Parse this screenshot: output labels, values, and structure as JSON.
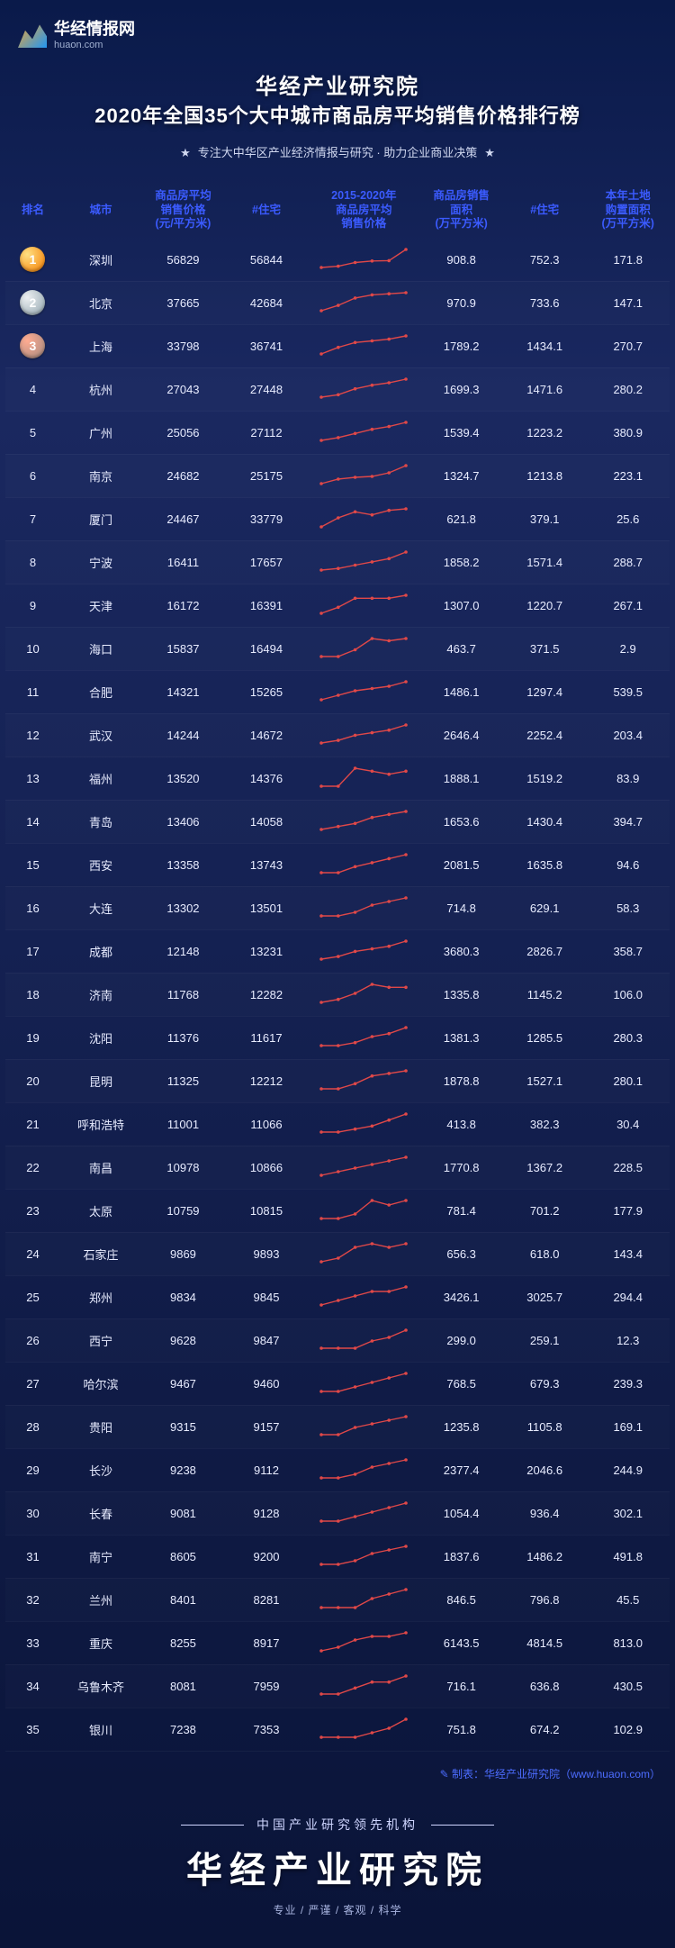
{
  "logo": {
    "name": "华经情报网",
    "domain": "huaon.com"
  },
  "title": {
    "line1": "华经产业研究院",
    "line2": "2020年全国35个大中城市商品房平均销售价格排行榜"
  },
  "slogan": "专注大中华区产业经济情报与研究 · 助力企业商业决策",
  "columns": {
    "rank": "排名",
    "city": "城市",
    "price": "商品房平均\n销售价格\n(元/平方米)",
    "zhuzhai": "#住宅",
    "spark": "2015-2020年\n商品房平均\n销售价格",
    "area": "商品房销售\n面积\n(万平方米)",
    "zhuzhai2": "#住宅",
    "land": "本年土地\n购置面积\n(万平方米)"
  },
  "sparkline_style": {
    "stroke": "#e04848",
    "stroke_width": 1.4,
    "marker_fill": "#e04848",
    "marker_r": 1.8,
    "width": 100,
    "height": 26
  },
  "medal_colors": {
    "1": "#f57c00",
    "2": "#90a4ae",
    "3": "#a1887f"
  },
  "text_colors": {
    "header": "#3b5bff",
    "body": "#e8ecff"
  },
  "rows": [
    {
      "rank": 1,
      "city": "深圳",
      "price": 56829,
      "zhu": 56844,
      "spark": [
        34,
        38,
        50,
        55,
        56,
        92
      ],
      "area": "908.8",
      "zhu2": "752.3",
      "land": "171.8"
    },
    {
      "rank": 2,
      "city": "北京",
      "price": 37665,
      "zhu": 42684,
      "spark": [
        23,
        28,
        35,
        38,
        39,
        40
      ],
      "area": "970.9",
      "zhu2": "733.6",
      "land": "147.1"
    },
    {
      "rank": 3,
      "city": "上海",
      "price": 33798,
      "zhu": 36741,
      "spark": [
        21,
        25,
        28,
        29,
        30,
        32
      ],
      "area": "1789.2",
      "zhu2": "1434.1",
      "land": "270.7"
    },
    {
      "rank": 4,
      "city": "杭州",
      "price": 27043,
      "zhu": 27448,
      "spark": [
        15,
        17,
        22,
        25,
        27,
        30
      ],
      "area": "1699.3",
      "zhu2": "1471.6",
      "land": "280.2"
    },
    {
      "rank": 5,
      "city": "广州",
      "price": 25056,
      "zhu": 27112,
      "spark": [
        15,
        17,
        20,
        23,
        25,
        28
      ],
      "area": "1539.4",
      "zhu2": "1223.2",
      "land": "380.9"
    },
    {
      "rank": 6,
      "city": "南京",
      "price": 24682,
      "zhu": 25175,
      "spark": [
        12,
        17,
        19,
        20,
        24,
        32
      ],
      "area": "1324.7",
      "zhu2": "1213.8",
      "land": "223.1"
    },
    {
      "rank": 7,
      "city": "厦门",
      "price": 24467,
      "zhu": 33779,
      "spark": [
        18,
        24,
        28,
        26,
        29,
        30
      ],
      "area": "621.8",
      "zhu2": "379.1",
      "land": "25.6"
    },
    {
      "rank": 8,
      "city": "宁波",
      "price": 16411,
      "zhu": 17657,
      "spark": [
        11,
        12,
        14,
        16,
        18,
        22
      ],
      "area": "1858.2",
      "zhu2": "1571.4",
      "land": "288.7"
    },
    {
      "rank": 9,
      "city": "天津",
      "price": 16172,
      "zhu": 16391,
      "spark": [
        11,
        13,
        16,
        16,
        16,
        17
      ],
      "area": "1307.0",
      "zhu2": "1220.7",
      "land": "267.1"
    },
    {
      "rank": 10,
      "city": "海口",
      "price": 15837,
      "zhu": 16494,
      "spark": [
        9,
        9,
        12,
        17,
        16,
        17
      ],
      "area": "463.7",
      "zhu2": "371.5",
      "land": "2.9"
    },
    {
      "rank": 11,
      "city": "合肥",
      "price": 14321,
      "zhu": 15265,
      "spark": [
        8,
        10,
        12,
        13,
        14,
        16
      ],
      "area": "1486.1",
      "zhu2": "1297.4",
      "land": "539.5"
    },
    {
      "rank": 12,
      "city": "武汉",
      "price": 14244,
      "zhu": 14672,
      "spark": [
        9,
        10,
        12,
        13,
        14,
        16
      ],
      "area": "2646.4",
      "zhu2": "2252.4",
      "land": "203.4"
    },
    {
      "rank": 13,
      "city": "福州",
      "price": 13520,
      "zhu": 14376,
      "spark": [
        11,
        11,
        17,
        16,
        15,
        16
      ],
      "area": "1888.1",
      "zhu2": "1519.2",
      "land": "83.9"
    },
    {
      "rank": 14,
      "city": "青岛",
      "price": 13406,
      "zhu": 14058,
      "spark": [
        9,
        10,
        11,
        13,
        14,
        15
      ],
      "area": "1653.6",
      "zhu2": "1430.4",
      "land": "394.7"
    },
    {
      "rank": 15,
      "city": "西安",
      "price": 13358,
      "zhu": 13743,
      "spark": [
        7,
        7,
        10,
        12,
        14,
        16
      ],
      "area": "2081.5",
      "zhu2": "1635.8",
      "land": "94.6"
    },
    {
      "rank": 16,
      "city": "大连",
      "price": 13302,
      "zhu": 13501,
      "spark": [
        10,
        10,
        11,
        13,
        14,
        15
      ],
      "area": "714.8",
      "zhu2": "629.1",
      "land": "58.3"
    },
    {
      "rank": 17,
      "city": "成都",
      "price": 12148,
      "zhu": 13231,
      "spark": [
        7,
        8,
        10,
        11,
        12,
        14
      ],
      "area": "3680.3",
      "zhu2": "2826.7",
      "land": "358.7"
    },
    {
      "rank": 18,
      "city": "济南",
      "price": 11768,
      "zhu": 12282,
      "spark": [
        8,
        9,
        11,
        14,
        13,
        13
      ],
      "area": "1335.8",
      "zhu2": "1145.2",
      "land": "106.0"
    },
    {
      "rank": 19,
      "city": "沈阳",
      "price": 11376,
      "zhu": 11617,
      "spark": [
        7,
        7,
        8,
        10,
        11,
        13
      ],
      "area": "1381.3",
      "zhu2": "1285.5",
      "land": "280.3"
    },
    {
      "rank": 20,
      "city": "昆明",
      "price": 11325,
      "zhu": 12212,
      "spark": [
        7,
        7,
        9,
        12,
        13,
        14
      ],
      "area": "1878.8",
      "zhu2": "1527.1",
      "land": "280.1"
    },
    {
      "rank": 21,
      "city": "呼和浩特",
      "price": 11001,
      "zhu": 11066,
      "spark": [
        6,
        6,
        7,
        8,
        10,
        12
      ],
      "area": "413.8",
      "zhu2": "382.3",
      "land": "30.4"
    },
    {
      "rank": 22,
      "city": "南昌",
      "price": 10978,
      "zhu": 10866,
      "spark": [
        7,
        8,
        9,
        10,
        11,
        12
      ],
      "area": "1770.8",
      "zhu2": "1367.2",
      "land": "228.5"
    },
    {
      "rank": 23,
      "city": "太原",
      "price": 10759,
      "zhu": 10815,
      "spark": [
        8,
        8,
        9,
        12,
        11,
        12
      ],
      "area": "781.4",
      "zhu2": "701.2",
      "land": "177.9"
    },
    {
      "rank": 24,
      "city": "石家庄",
      "price": 9869,
      "zhu": 9893,
      "spark": [
        7,
        8,
        11,
        12,
        11,
        12
      ],
      "area": "656.3",
      "zhu2": "618.0",
      "land": "143.4"
    },
    {
      "rank": 25,
      "city": "郑州",
      "price": 9834,
      "zhu": 9845,
      "spark": [
        7,
        8,
        9,
        10,
        10,
        11
      ],
      "area": "3426.1",
      "zhu2": "3025.7",
      "land": "294.4"
    },
    {
      "rank": 26,
      "city": "西宁",
      "price": 9628,
      "zhu": 9847,
      "spark": [
        6,
        6,
        6,
        8,
        9,
        11
      ],
      "area": "299.0",
      "zhu2": "259.1",
      "land": "12.3"
    },
    {
      "rank": 27,
      "city": "哈尔滨",
      "price": 9467,
      "zhu": 9460,
      "spark": [
        7,
        7,
        8,
        9,
        10,
        11
      ],
      "area": "768.5",
      "zhu2": "679.3",
      "land": "239.3"
    },
    {
      "rank": 28,
      "city": "贵阳",
      "price": 9315,
      "zhu": 9157,
      "spark": [
        5,
        5,
        7,
        8,
        9,
        10
      ],
      "area": "1235.8",
      "zhu2": "1105.8",
      "land": "169.1"
    },
    {
      "rank": 29,
      "city": "长沙",
      "price": 9238,
      "zhu": 9112,
      "spark": [
        6,
        6,
        7,
        9,
        10,
        11
      ],
      "area": "2377.4",
      "zhu2": "2046.6",
      "land": "244.9"
    },
    {
      "rank": 30,
      "city": "长春",
      "price": 9081,
      "zhu": 9128,
      "spark": [
        7,
        7,
        8,
        9,
        10,
        11
      ],
      "area": "1054.4",
      "zhu2": "936.4",
      "land": "302.1"
    },
    {
      "rank": 31,
      "city": "南宁",
      "price": 8605,
      "zhu": 9200,
      "spark": [
        7,
        7,
        8,
        10,
        11,
        12
      ],
      "area": "1837.6",
      "zhu2": "1486.2",
      "land": "491.8"
    },
    {
      "rank": 32,
      "city": "兰州",
      "price": 8401,
      "zhu": 8281,
      "spark": [
        7,
        7,
        7,
        9,
        10,
        11
      ],
      "area": "846.5",
      "zhu2": "796.8",
      "land": "45.5"
    },
    {
      "rank": 33,
      "city": "重庆",
      "price": 8255,
      "zhu": 8917,
      "spark": [
        5,
        6,
        8,
        9,
        9,
        10
      ],
      "area": "6143.5",
      "zhu2": "4814.5",
      "land": "813.0"
    },
    {
      "rank": 34,
      "city": "乌鲁木齐",
      "price": 8081,
      "zhu": 7959,
      "spark": [
        7,
        7,
        8,
        9,
        9,
        10
      ],
      "area": "716.1",
      "zhu2": "636.8",
      "land": "430.5"
    },
    {
      "rank": 35,
      "city": "银川",
      "price": 7238,
      "zhu": 7353,
      "spark": [
        5,
        5,
        5,
        6,
        7,
        9
      ],
      "area": "751.8",
      "zhu2": "674.2",
      "land": "102.9"
    }
  ],
  "credit": "制表：华经产业研究院（www.huaon.com）",
  "footer": {
    "top": "中国产业研究领先机构",
    "main": "华经产业研究院",
    "tags": "专业  /  严谨  /  客观  /  科学"
  }
}
